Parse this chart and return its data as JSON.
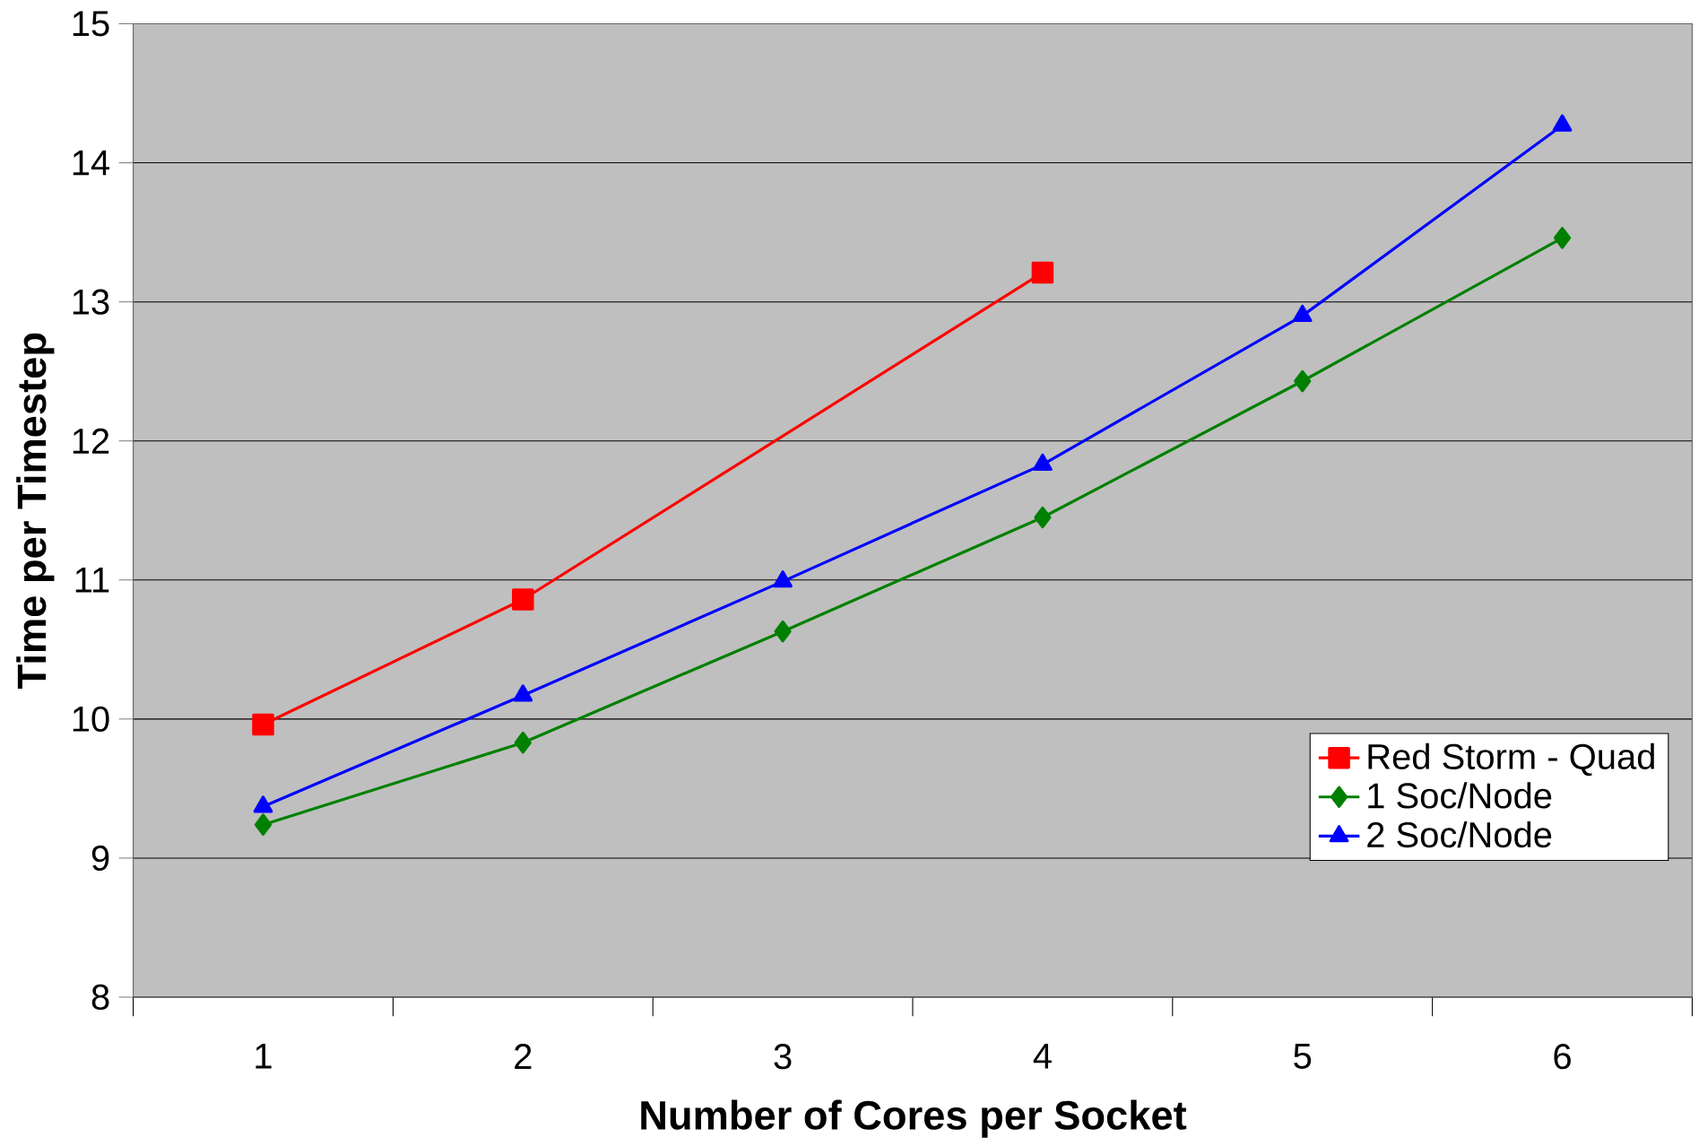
{
  "chart_data": {
    "type": "line",
    "xlabel": "Number of Cores per Socket",
    "ylabel": "Time per Timestep",
    "categories": [
      "1",
      "2",
      "3",
      "4",
      "5",
      "6"
    ],
    "series": [
      {
        "name": "Red Storm - Quad",
        "color": "#ff0000",
        "marker": "square",
        "values": [
          9.96,
          10.86,
          null,
          13.21,
          null,
          null
        ]
      },
      {
        "name": "1 Soc/Node",
        "color": "#008000",
        "marker": "diamond",
        "values": [
          9.24,
          9.83,
          10.63,
          11.45,
          12.43,
          13.46
        ]
      },
      {
        "name": "2 Soc/Node",
        "color": "#0000ff",
        "marker": "triangle",
        "values": [
          9.37,
          10.17,
          10.99,
          11.83,
          12.9,
          14.27
        ]
      }
    ],
    "ylim": [
      8,
      15
    ],
    "yticks": [
      8,
      9,
      10,
      11,
      12,
      13,
      14,
      15
    ],
    "grid": "y",
    "legend": "bottom right",
    "line_style": "solid"
  }
}
